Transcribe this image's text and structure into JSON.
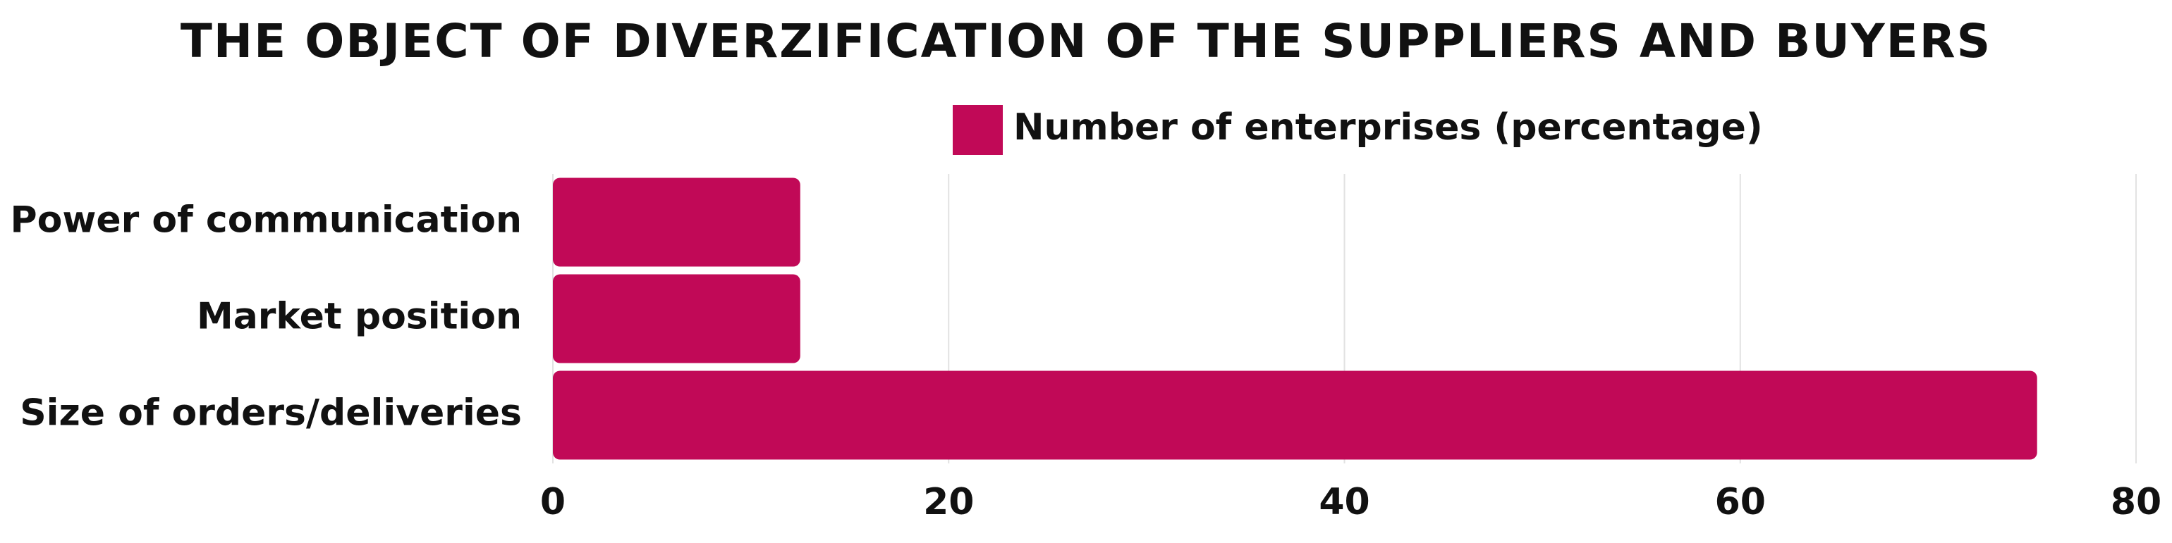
{
  "chart_data": {
    "type": "hbar",
    "title": "THE OBJECT OF DIVERZIFICATION OF THE SUPPLIERS AND BUYERS",
    "categories": [
      "Power of communication",
      "Market position",
      "Size of orders/deliveries"
    ],
    "series": [
      {
        "name": "Number of enterprises (percentage)",
        "color": "#c10957",
        "values": [
          12.5,
          12.5,
          75
        ]
      }
    ],
    "xlim": [
      0,
      80
    ],
    "xticks": [
      0,
      20,
      40,
      60,
      80
    ],
    "grid": true,
    "legend": "top"
  }
}
